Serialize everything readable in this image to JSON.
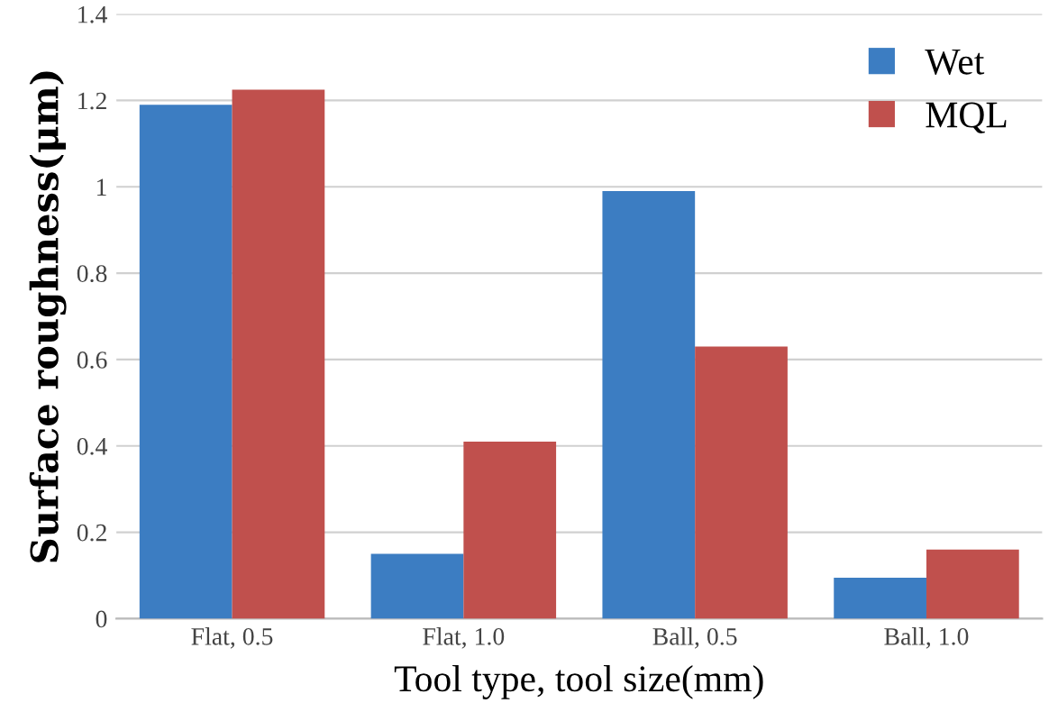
{
  "chart_data": {
    "type": "bar",
    "xlabel": "Tool type, tool size(mm)",
    "ylabel": "Surface roughness(μm)",
    "categories": [
      "Flat, 0.5",
      "Flat, 1.0",
      "Ball, 0.5",
      "Ball, 1.0"
    ],
    "series": [
      {
        "name": "Wet",
        "color": "#3c7dc2",
        "values": [
          1.19,
          0.15,
          0.99,
          0.095
        ]
      },
      {
        "name": "MQL",
        "color": "#c0504d",
        "values": [
          1.225,
          0.41,
          0.63,
          0.16
        ]
      }
    ],
    "ylim": [
      0,
      1.4
    ],
    "yticks": [
      0,
      0.2,
      0.4,
      0.6,
      0.8,
      1,
      1.2,
      1.4
    ],
    "grid": "y",
    "legend": "top right"
  }
}
